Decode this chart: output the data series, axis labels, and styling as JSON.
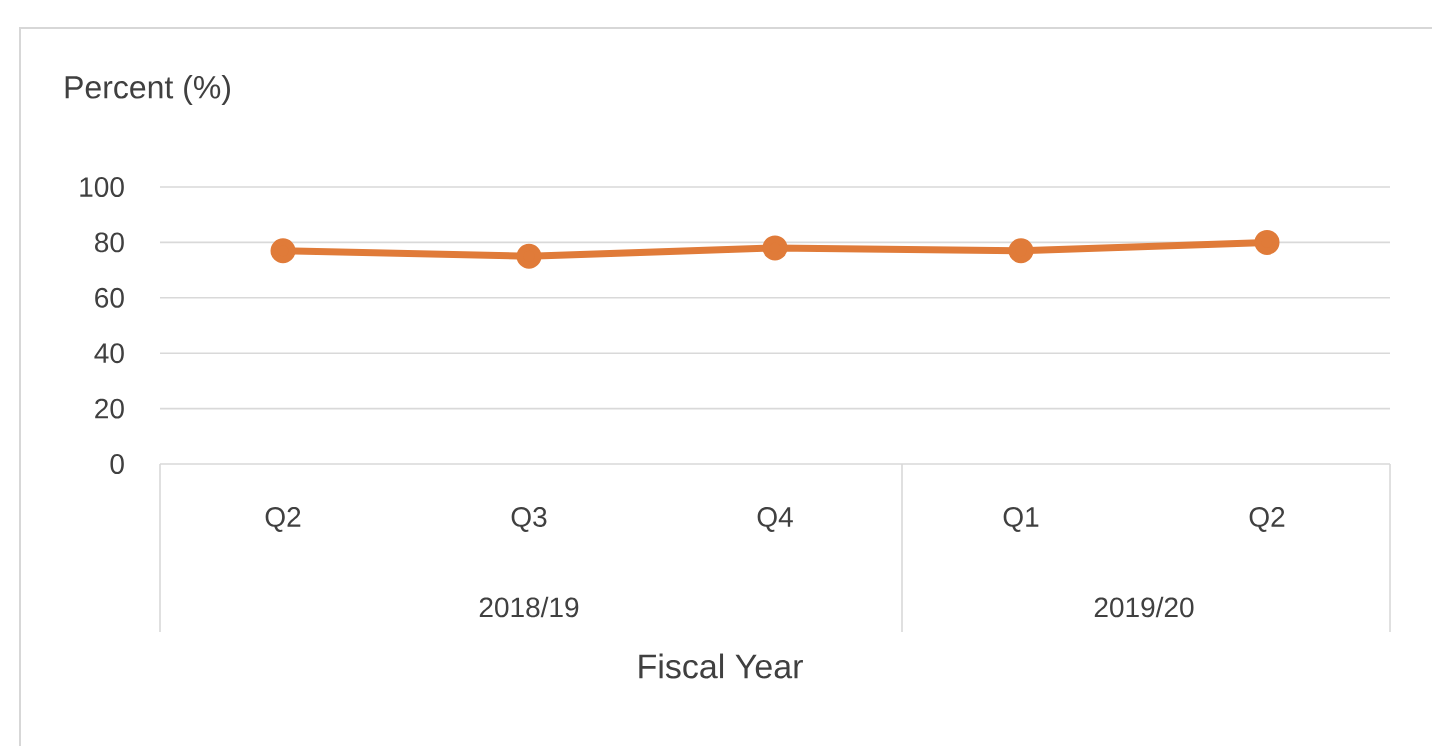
{
  "chart_data": {
    "type": "line",
    "xlabel": "Fiscal Year",
    "ylabel": "Percent (%)",
    "categories": [
      "Q2",
      "Q3",
      "Q4",
      "Q1",
      "Q2"
    ],
    "series": [
      {
        "color": "#e07b39",
        "values": [
          77,
          75,
          78,
          77,
          80
        ]
      }
    ],
    "ylim": [
      0,
      100
    ],
    "yticks": [
      0,
      20,
      40,
      60,
      80,
      100
    ],
    "grid": "y",
    "marker": "circle",
    "line_style": "solid",
    "annotations": [
      "2018/19",
      "2019/20"
    ]
  }
}
